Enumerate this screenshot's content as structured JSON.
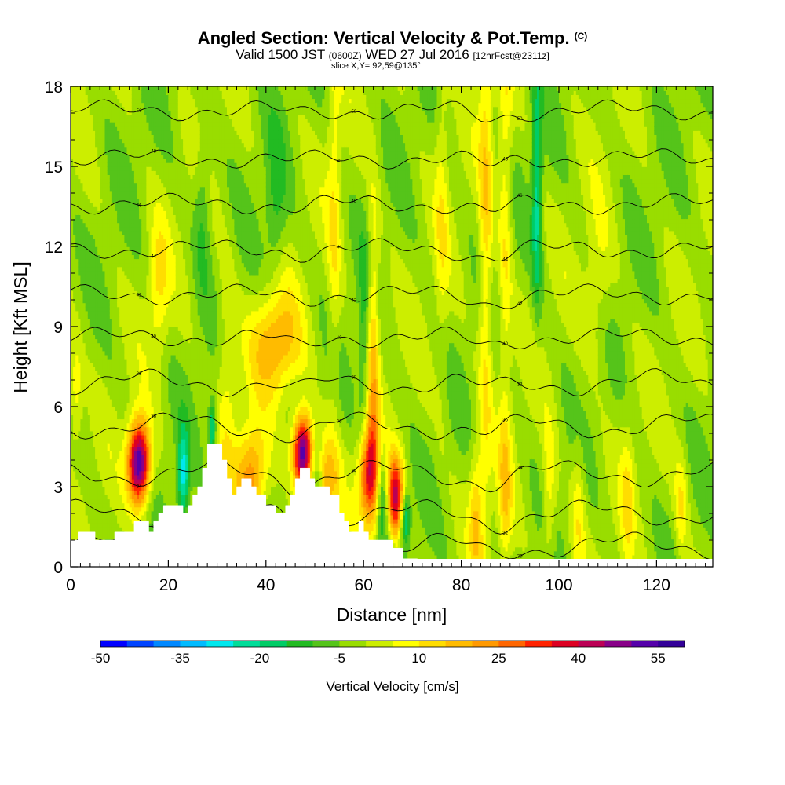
{
  "header": {
    "title": "Angled Section: Vertical Velocity & Pot.Temp.",
    "title_tag": "(C)",
    "valid_prefix": "Valid 1500 JST",
    "valid_z": "(0600Z)",
    "valid_date": "WED 27 Jul 2016",
    "forecast": "[12hrFcst@2311z]",
    "slice": "slice X,Y= 92,59@135°"
  },
  "chart_data": {
    "type": "heatmap",
    "xlabel": "Distance [nm]",
    "ylabel": "Height [Kft MSL]",
    "xlim": [
      0,
      132
    ],
    "ylim": [
      0,
      18
    ],
    "x_ticks": [
      0,
      20,
      40,
      60,
      80,
      100,
      120
    ],
    "y_ticks": [
      0,
      3,
      6,
      9,
      12,
      15,
      18
    ],
    "background_value": -2,
    "updrafts": [
      {
        "x": 14,
        "y": 3.9,
        "peak": 60,
        "sx": 1.6,
        "sy": 1.1
      },
      {
        "x": 47.5,
        "y": 4.3,
        "peak": 60,
        "sx": 1.4,
        "sy": 1.0
      },
      {
        "x": 61,
        "y": 3.5,
        "peak": 38,
        "sx": 1.4,
        "sy": 1.3
      },
      {
        "x": 66.5,
        "y": 2.6,
        "peak": 42,
        "sx": 1.2,
        "sy": 1.1
      },
      {
        "x": 37,
        "y": 3.4,
        "peak": 25,
        "sx": 2.2,
        "sy": 1.3
      },
      {
        "x": 42,
        "y": 8.4,
        "peak": 22,
        "sx": 3.5,
        "sy": 1.4
      },
      {
        "x": 52,
        "y": 3.3,
        "peak": 22,
        "sx": 2.0,
        "sy": 1.2
      },
      {
        "x": 85,
        "y": 12,
        "peak": 15,
        "sx": 1.0,
        "sy": 7.0
      },
      {
        "x": 89,
        "y": 13,
        "peak": 12,
        "sx": 1.0,
        "sy": 6.0
      },
      {
        "x": 54,
        "y": 13,
        "peak": 10,
        "sx": 1.0,
        "sy": 5.0
      },
      {
        "x": 62,
        "y": 8,
        "peak": 18,
        "sx": 0.9,
        "sy": 4.0
      },
      {
        "x": 76,
        "y": 14,
        "peak": 8,
        "sx": 1.0,
        "sy": 5.0
      },
      {
        "x": 32,
        "y": 7,
        "peak": 10,
        "sx": 1.5,
        "sy": 3.0
      },
      {
        "x": 18,
        "y": 10.5,
        "peak": 12,
        "sx": 1.5,
        "sy": 1.8
      },
      {
        "x": 83,
        "y": 2,
        "peak": 15,
        "sx": 1.0,
        "sy": 1.8
      },
      {
        "x": 89,
        "y": 2.5,
        "peak": 12,
        "sx": 1.0,
        "sy": 2.0
      },
      {
        "x": 98,
        "y": 2.5,
        "peak": 12,
        "sx": 1.0,
        "sy": 2.0
      },
      {
        "x": 104,
        "y": 2.2,
        "peak": 10,
        "sx": 1.0,
        "sy": 2.0
      },
      {
        "x": 114,
        "y": 2.5,
        "peak": 10,
        "sx": 1.0,
        "sy": 2.0
      },
      {
        "x": 125,
        "y": 2.3,
        "peak": 12,
        "sx": 1.0,
        "sy": 1.5
      },
      {
        "x": 1,
        "y": 6.5,
        "peak": 12,
        "sx": 1.0,
        "sy": 1.5
      },
      {
        "x": 108,
        "y": 10.5,
        "peak": 8,
        "sx": 2.0,
        "sy": 2.0
      }
    ],
    "downdrafts": [
      {
        "x": 23,
        "y": 3.4,
        "peak": -25,
        "sx": 0.8,
        "sy": 1.2
      },
      {
        "x": 29,
        "y": 5.2,
        "peak": -22,
        "sx": 0.6,
        "sy": 0.8
      },
      {
        "x": 68.5,
        "y": 1.8,
        "peak": -25,
        "sx": 0.7,
        "sy": 0.7
      },
      {
        "x": 95.5,
        "y": 14,
        "peak": -20,
        "sx": 0.7,
        "sy": 3.0
      },
      {
        "x": 50.5,
        "y": 3.4,
        "peak": -15,
        "sx": 1.0,
        "sy": 1.0
      },
      {
        "x": 64,
        "y": 2.6,
        "peak": -15,
        "sx": 0.8,
        "sy": 1.2
      },
      {
        "x": 27,
        "y": 13.5,
        "peak": -10,
        "sx": 1.2,
        "sy": 2.0
      },
      {
        "x": 42,
        "y": 13.5,
        "peak": -10,
        "sx": 1.5,
        "sy": 2.0
      },
      {
        "x": 60,
        "y": 8,
        "peak": -10,
        "sx": 0.8,
        "sy": 3.0
      }
    ],
    "terrain": [
      [
        0,
        1
      ],
      [
        1.5,
        1
      ],
      [
        1.5,
        1.3
      ],
      [
        5,
        1.3
      ],
      [
        5,
        1
      ],
      [
        9,
        1
      ],
      [
        9,
        1.3
      ],
      [
        13,
        1.3
      ],
      [
        13,
        1.7
      ],
      [
        16,
        1.7
      ],
      [
        16,
        1.3
      ],
      [
        17,
        1.3
      ],
      [
        17,
        1.7
      ],
      [
        18,
        1.7
      ],
      [
        18,
        2
      ],
      [
        19,
        2
      ],
      [
        19,
        2.3
      ],
      [
        23,
        2.3
      ],
      [
        23,
        2
      ],
      [
        24,
        2
      ],
      [
        24,
        2.3
      ],
      [
        25,
        2.3
      ],
      [
        25,
        2.7
      ],
      [
        26,
        2.7
      ],
      [
        26,
        3
      ],
      [
        27,
        3
      ],
      [
        27,
        3.7
      ],
      [
        28,
        3.7
      ],
      [
        28,
        4.6
      ],
      [
        31,
        4.6
      ],
      [
        31,
        4
      ],
      [
        32,
        4
      ],
      [
        32,
        3.3
      ],
      [
        33,
        3.3
      ],
      [
        33,
        2.7
      ],
      [
        34,
        2.7
      ],
      [
        34,
        3
      ],
      [
        35,
        3
      ],
      [
        35,
        3.3
      ],
      [
        37,
        3.3
      ],
      [
        37,
        3
      ],
      [
        38,
        3
      ],
      [
        38,
        2.7
      ],
      [
        40,
        2.7
      ],
      [
        40,
        2.3
      ],
      [
        42,
        2.3
      ],
      [
        42,
        2
      ],
      [
        44,
        2
      ],
      [
        44,
        2.3
      ],
      [
        45,
        2.3
      ],
      [
        45,
        2.7
      ],
      [
        46,
        2.7
      ],
      [
        46,
        3.3
      ],
      [
        47,
        3.3
      ],
      [
        47,
        3.7
      ],
      [
        49,
        3.7
      ],
      [
        49,
        3.3
      ],
      [
        50,
        3.3
      ],
      [
        50,
        3
      ],
      [
        53,
        3
      ],
      [
        53,
        2.7
      ],
      [
        55,
        2.7
      ],
      [
        55,
        2
      ],
      [
        56,
        2
      ],
      [
        56,
        1.7
      ],
      [
        57,
        1.7
      ],
      [
        57,
        1.3
      ],
      [
        59,
        1.3
      ],
      [
        59,
        1.7
      ],
      [
        60,
        1.7
      ],
      [
        60,
        1.3
      ],
      [
        61,
        1.3
      ],
      [
        61,
        1
      ],
      [
        66,
        1
      ],
      [
        66,
        0.7
      ],
      [
        68,
        0.7
      ],
      [
        68,
        0.3
      ],
      [
        71,
        0.3
      ],
      [
        71,
        0
      ],
      [
        0,
        0
      ]
    ],
    "theta_labels": [
      "30",
      "32",
      "34",
      "36",
      "38",
      "40",
      "42",
      "44",
      "46",
      "48",
      "50"
    ],
    "theta_levels": [
      0.8,
      2.0,
      3.5,
      5.3,
      6.9,
      8.6,
      10.2,
      11.9,
      13.6,
      15.3,
      17.1
    ],
    "colorbar": {
      "label": "Vertical Velocity [cm/s]",
      "min": -50,
      "max": 60,
      "step": 5,
      "tick_labels": [
        "-50",
        "-35",
        "-20",
        "-5",
        "10",
        "25",
        "40",
        "55"
      ],
      "colors": [
        "#0000ff",
        "#0044ff",
        "#0088ff",
        "#00bbff",
        "#00e8ee",
        "#00dd99",
        "#00cc66",
        "#22bb22",
        "#55c41a",
        "#99dd00",
        "#ccee00",
        "#ffff00",
        "#ffdd00",
        "#ffbb00",
        "#ff9900",
        "#ff6600",
        "#ff2200",
        "#dd0022",
        "#bb0055",
        "#880088",
        "#5500aa",
        "#330099"
      ]
    }
  }
}
